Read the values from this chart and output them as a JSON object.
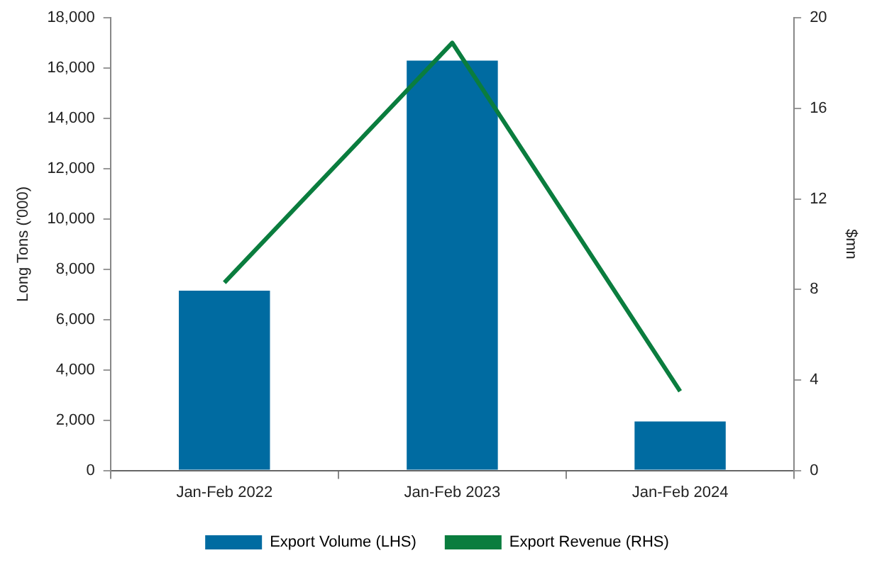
{
  "chart_data": {
    "type": "bar",
    "categories": [
      "Jan-Feb 2022",
      "Jan-Feb 2023",
      "Jan-Feb 2024"
    ],
    "series": [
      {
        "name": "Export Volume (LHS)",
        "color": "#006ba1",
        "values": [
          7150,
          16300,
          1950
        ]
      },
      {
        "name": "Export Revenue (RHS)",
        "type": "line",
        "axis": "y2",
        "color": "#0a7d3e",
        "values": [
          8.3,
          18.9,
          3.5
        ]
      }
    ],
    "ylabel": "Long Tons ('000)",
    "y2label": "$mn",
    "ylim": [
      0,
      18000
    ],
    "yticks": [
      0,
      {
        "value": 2000,
        "label": "2,000"
      },
      {
        "value": 4000,
        "label": "4,000"
      },
      {
        "value": 6000,
        "label": "6,000"
      },
      {
        "value": 8000,
        "label": "8,000"
      },
      {
        "value": 10000,
        "label": "10,000"
      },
      {
        "value": 12000,
        "label": "12,000"
      },
      {
        "value": 14000,
        "label": "14,000"
      },
      {
        "value": 16000,
        "label": "16,000"
      },
      {
        "value": 18000,
        "label": "18,000"
      }
    ],
    "y2lim": [
      0,
      20
    ],
    "y2ticks": [
      0,
      4,
      8,
      12,
      16,
      20
    ],
    "grid": false,
    "legend": "bottom",
    "marker": "none"
  }
}
